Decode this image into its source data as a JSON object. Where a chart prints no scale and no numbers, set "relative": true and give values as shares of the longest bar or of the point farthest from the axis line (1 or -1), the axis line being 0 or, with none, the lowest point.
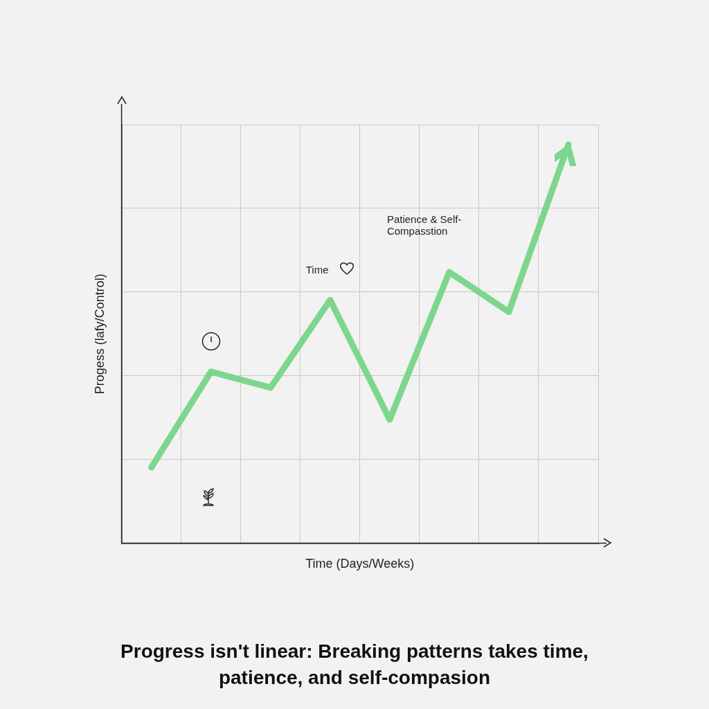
{
  "chart_data": {
    "type": "line",
    "title": "Progress isn't linear: Breaking patterns takes time, patience, and self-compasion",
    "xlabel": "Time (Days/Weeks)",
    "ylabel": "Progess (lafy/Control)",
    "relative": true,
    "grid": true,
    "marker": "none",
    "line_style": "solid",
    "categories": [
      null,
      null,
      null,
      null,
      null,
      null,
      null,
      null
    ],
    "series": [
      {
        "color": "#7dd68d",
        "values": [
          0.19,
          0.43,
          0.39,
          0.61,
          0.31,
          0.68,
          0.58,
          1.0
        ]
      }
    ],
    "annotations": [
      "Time",
      "Patience & Self-Compasstion"
    ]
  }
}
